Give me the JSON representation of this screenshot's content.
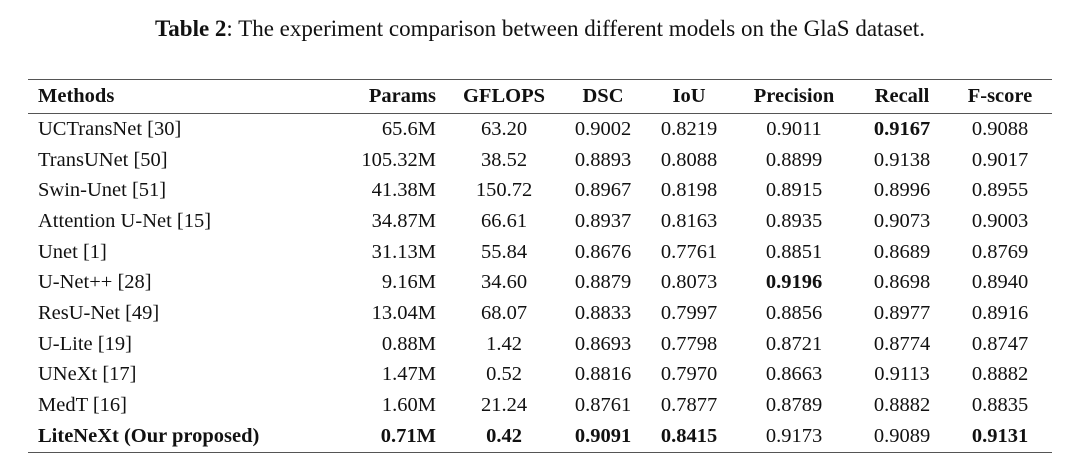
{
  "caption": {
    "label": "Table 2",
    "text": ": The experiment comparison between different models on the GlaS dataset."
  },
  "table": {
    "headers": [
      "Methods",
      "Params",
      "GFLOPS",
      "DSC",
      "IoU",
      "Precision",
      "Recall",
      "F-score"
    ],
    "rows": [
      {
        "cells": [
          "UCTransNet [30]",
          "65.6M",
          "63.20",
          "0.9002",
          "0.8219",
          "0.9011",
          "0.9167",
          "0.9088"
        ],
        "bold": [
          6
        ]
      },
      {
        "cells": [
          "TransUNet [50]",
          "105.32M",
          "38.52",
          "0.8893",
          "0.8088",
          "0.8899",
          "0.9138",
          "0.9017"
        ],
        "bold": []
      },
      {
        "cells": [
          "Swin-Unet [51]",
          "41.38M",
          "150.72",
          "0.8967",
          "0.8198",
          "0.8915",
          "0.8996",
          "0.8955"
        ],
        "bold": []
      },
      {
        "cells": [
          "Attention U-Net [15]",
          "34.87M",
          "66.61",
          "0.8937",
          "0.8163",
          "0.8935",
          "0.9073",
          "0.9003"
        ],
        "bold": []
      },
      {
        "cells": [
          "Unet [1]",
          "31.13M",
          "55.84",
          "0.8676",
          "0.7761",
          "0.8851",
          "0.8689",
          "0.8769"
        ],
        "bold": []
      },
      {
        "cells": [
          "U-Net++ [28]",
          "9.16M",
          "34.60",
          "0.8879",
          "0.8073",
          "0.9196",
          "0.8698",
          "0.8940"
        ],
        "bold": [
          5
        ]
      },
      {
        "cells": [
          "ResU-Net [49]",
          "13.04M",
          "68.07",
          "0.8833",
          "0.7997",
          "0.8856",
          "0.8977",
          "0.8916"
        ],
        "bold": []
      },
      {
        "cells": [
          "U-Lite [19]",
          "0.88M",
          "1.42",
          "0.8693",
          "0.7798",
          "0.8721",
          "0.8774",
          "0.8747"
        ],
        "bold": []
      },
      {
        "cells": [
          "UNeXt [17]",
          "1.47M",
          "0.52",
          "0.8816",
          "0.7970",
          "0.8663",
          "0.9113",
          "0.8882"
        ],
        "bold": []
      },
      {
        "cells": [
          "MedT [16]",
          "1.60M",
          "21.24",
          "0.8761",
          "0.7877",
          "0.8789",
          "0.8882",
          "0.8835"
        ],
        "bold": []
      },
      {
        "cells": [
          "LiteNeXt (Our proposed)",
          "0.71M",
          "0.42",
          "0.9091",
          "0.8415",
          "0.9173",
          "0.9089",
          "0.9131"
        ],
        "bold": [
          0,
          1,
          2,
          3,
          4,
          7
        ]
      }
    ]
  }
}
